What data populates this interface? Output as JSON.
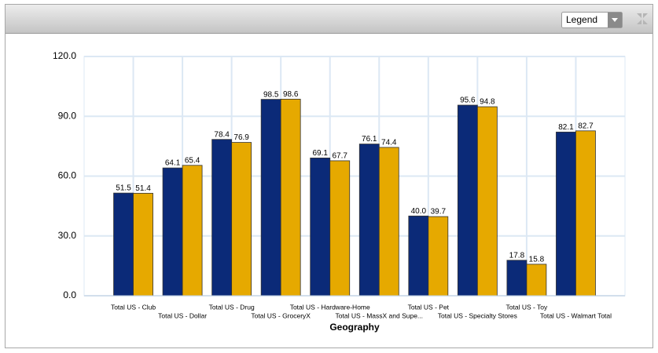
{
  "toolbar": {
    "legend_select": "Legend"
  },
  "chart_data": {
    "type": "bar",
    "x_label": "Geography",
    "categories": [
      "Total US - Club",
      "Total US - Dollar",
      "Total US - Drug",
      "Total US - GroceryX",
      "Total US - Hardware-Home",
      "Total US - MassX and Supe...",
      "Total US - Pet",
      "Total US - Specialty Stores",
      "Total US - Toy",
      "Total US - Walmart Total"
    ],
    "series": [
      {
        "color": "#0b2a78",
        "values": [
          51.5,
          64.1,
          78.4,
          98.5,
          69.1,
          76.1,
          40.0,
          95.6,
          17.8,
          82.1
        ],
        "value_labels": [
          "51.5",
          "64.1",
          "78.4",
          "98.5",
          "69.1",
          "76.1",
          "40.0",
          "95.6",
          "17.8",
          "82.1"
        ]
      },
      {
        "color": "#e6a900",
        "values": [
          51.4,
          65.4,
          76.9,
          98.6,
          67.7,
          74.4,
          39.7,
          94.8,
          15.8,
          82.7
        ]
      }
    ],
    "ylim": [
      0,
      120
    ],
    "yticks": [
      {
        "value": 0,
        "label": "0.0"
      },
      {
        "value": 30,
        "label": "30.0"
      },
      {
        "value": 60,
        "label": "60.0"
      },
      {
        "value": 90,
        "label": "90.0"
      },
      {
        "value": 120,
        "label": "120.0"
      }
    ],
    "grid": true
  }
}
